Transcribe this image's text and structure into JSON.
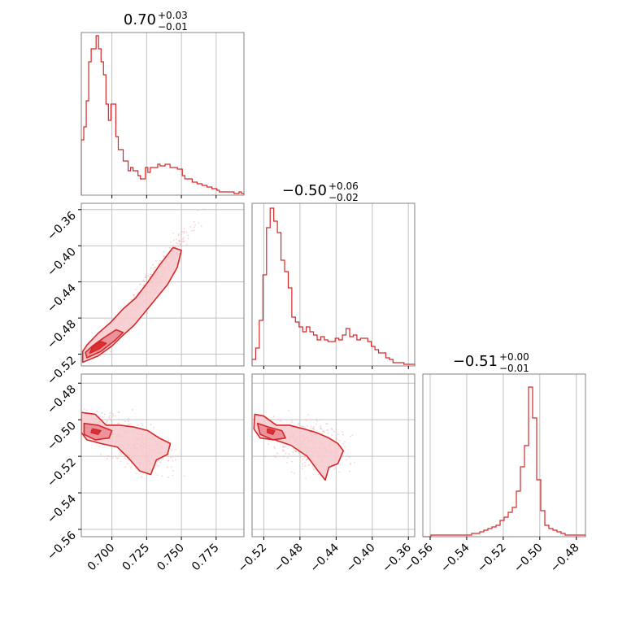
{
  "chart_data": {
    "type": "corner",
    "color": "#d62728",
    "fill_light": "#f6c9cc",
    "fill_dark": "#e9888f",
    "scatter_color": "#f0b0b5",
    "grid": true,
    "params": [
      {
        "title_value": "0.70",
        "title_sup": "+0.03",
        "title_sub": "−0.01",
        "range": [
          0.678,
          0.795
        ],
        "ticks": [
          0.7,
          0.725,
          0.75,
          0.775
        ],
        "tick_labels": [
          "0.700",
          "0.725",
          "0.750",
          "0.775"
        ],
        "hist_range": [
          0,
          1.0
        ],
        "hist": [
          0.34,
          0.42,
          0.58,
          0.82,
          0.9,
          0.9,
          0.98,
          0.9,
          0.82,
          0.74,
          0.56,
          0.46,
          0.56,
          0.56,
          0.36,
          0.28,
          0.28,
          0.21,
          0.21,
          0.15,
          0.17,
          0.15,
          0.15,
          0.12,
          0.1,
          0.1,
          0.17,
          0.14,
          0.17,
          0.17,
          0.17,
          0.19,
          0.18,
          0.18,
          0.19,
          0.19,
          0.17,
          0.17,
          0.17,
          0.16,
          0.16,
          0.12,
          0.1,
          0.1,
          0.1,
          0.08,
          0.08,
          0.07,
          0.07,
          0.06,
          0.06,
          0.05,
          0.05,
          0.04,
          0.04,
          0.03,
          0.02,
          0.02,
          0.02,
          0.02,
          0.02,
          0.02,
          0.01,
          0.01,
          0.02,
          0.01
        ]
      },
      {
        "title_value": "−0.50",
        "title_sup": "+0.06",
        "title_sub": "−0.02",
        "range": [
          -0.533,
          -0.353
        ],
        "ticks": [
          -0.52,
          -0.48,
          -0.44,
          -0.4,
          -0.36
        ],
        "tick_labels": [
          "−0.52",
          "−0.48",
          "−0.44",
          "−0.40",
          "−0.36"
        ],
        "hist_range": [
          0,
          1.0
        ],
        "hist": [
          0.04,
          0.11,
          0.28,
          0.56,
          0.85,
          0.97,
          0.89,
          0.82,
          0.65,
          0.58,
          0.48,
          0.3,
          0.27,
          0.24,
          0.21,
          0.24,
          0.21,
          0.19,
          0.16,
          0.18,
          0.16,
          0.15,
          0.15,
          0.17,
          0.16,
          0.19,
          0.23,
          0.18,
          0.19,
          0.16,
          0.17,
          0.17,
          0.15,
          0.12,
          0.1,
          0.08,
          0.08,
          0.05,
          0.04,
          0.02,
          0.02,
          0.02,
          0.01,
          0.01,
          0.01
        ]
      },
      {
        "title_value": "−0.51",
        "title_sup": "+0.00",
        "title_sub": "−0.01",
        "range": [
          -0.564,
          -0.475
        ],
        "ticks": [
          -0.56,
          -0.54,
          -0.52,
          -0.5,
          -0.48
        ],
        "tick_labels": [
          "−0.56",
          "−0.54",
          "−0.52",
          "−0.50",
          "−0.48"
        ],
        "hist_range": [
          0,
          1.0
        ],
        "hist": [
          0.0,
          0.0,
          0.01,
          0.01,
          0.01,
          0.01,
          0.01,
          0.01,
          0.01,
          0.01,
          0.01,
          0.01,
          0.02,
          0.02,
          0.03,
          0.04,
          0.05,
          0.06,
          0.07,
          0.1,
          0.12,
          0.15,
          0.18,
          0.28,
          0.43,
          0.56,
          0.92,
          0.73,
          0.35,
          0.16,
          0.07,
          0.05,
          0.04,
          0.03,
          0.02,
          0.01,
          0.01,
          0.01,
          0.01,
          0.01
        ]
      }
    ],
    "pairs": [
      {
        "row": 1,
        "col": 0,
        "levels": [
          {
            "sigma": 2,
            "fill": "light",
            "points": [
              [
                0.679,
                -0.529
              ],
              [
                0.69,
                -0.522
              ],
              [
                0.7,
                -0.511
              ],
              [
                0.708,
                -0.499
              ],
              [
                0.716,
                -0.488
              ],
              [
                0.724,
                -0.473
              ],
              [
                0.732,
                -0.458
              ],
              [
                0.74,
                -0.443
              ],
              [
                0.747,
                -0.424
              ],
              [
                0.75,
                -0.405
              ],
              [
                0.744,
                -0.402
              ],
              [
                0.734,
                -0.422
              ],
              [
                0.726,
                -0.44
              ],
              [
                0.717,
                -0.458
              ],
              [
                0.708,
                -0.47
              ],
              [
                0.699,
                -0.485
              ],
              [
                0.69,
                -0.497
              ],
              [
                0.682,
                -0.51
              ],
              [
                0.679,
                -0.517
              ]
            ]
          },
          {
            "sigma": 1,
            "fill": "dark",
            "points": [
              [
                0.682,
                -0.524
              ],
              [
                0.692,
                -0.517
              ],
              [
                0.702,
                -0.505
              ],
              [
                0.708,
                -0.496
              ],
              [
                0.703,
                -0.493
              ],
              [
                0.694,
                -0.502
              ],
              [
                0.686,
                -0.511
              ],
              [
                0.681,
                -0.518
              ]
            ]
          },
          {
            "sigma": 0.5,
            "fill": "darker",
            "points": [
              [
                0.684,
                -0.519
              ],
              [
                0.691,
                -0.514
              ],
              [
                0.696,
                -0.508
              ],
              [
                0.692,
                -0.506
              ],
              [
                0.686,
                -0.512
              ]
            ]
          }
        ],
        "scatter": {
          "center": [
            0.73,
            -0.44
          ],
          "slope": 2.1,
          "spread": [
            0.018,
            0.012
          ],
          "n": 380
        }
      },
      {
        "row": 2,
        "col": 0,
        "levels": [
          {
            "sigma": 2,
            "fill": "light",
            "points": [
              [
                0.678,
                -0.496
              ],
              [
                0.688,
                -0.497
              ],
              [
                0.696,
                -0.503
              ],
              [
                0.706,
                -0.503
              ],
              [
                0.716,
                -0.504
              ],
              [
                0.726,
                -0.506
              ],
              [
                0.734,
                -0.51
              ],
              [
                0.742,
                -0.513
              ],
              [
                0.74,
                -0.519
              ],
              [
                0.732,
                -0.522
              ],
              [
                0.728,
                -0.53
              ],
              [
                0.72,
                -0.528
              ],
              [
                0.712,
                -0.521
              ],
              [
                0.704,
                -0.515
              ],
              [
                0.692,
                -0.513
              ],
              [
                0.682,
                -0.511
              ],
              [
                0.678,
                -0.507
              ]
            ]
          },
          {
            "sigma": 1,
            "fill": "dark",
            "points": [
              [
                0.68,
                -0.502
              ],
              [
                0.69,
                -0.503
              ],
              [
                0.7,
                -0.506
              ],
              [
                0.698,
                -0.51
              ],
              [
                0.688,
                -0.511
              ],
              [
                0.68,
                -0.508
              ]
            ]
          },
          {
            "sigma": 0.5,
            "fill": "darker",
            "points": [
              [
                0.686,
                -0.505
              ],
              [
                0.692,
                -0.506
              ],
              [
                0.69,
                -0.508
              ],
              [
                0.685,
                -0.507
              ]
            ]
          }
        ],
        "scatter": {
          "center": [
            0.715,
            -0.513
          ],
          "slope": -0.3,
          "spread": [
            0.02,
            0.01
          ],
          "n": 330
        }
      },
      {
        "row": 2,
        "col": 1,
        "levels": [
          {
            "sigma": 2,
            "fill": "light",
            "points": [
              [
                -0.53,
                -0.497
              ],
              [
                -0.52,
                -0.498
              ],
              [
                -0.506,
                -0.503
              ],
              [
                -0.492,
                -0.503
              ],
              [
                -0.476,
                -0.505
              ],
              [
                -0.462,
                -0.507
              ],
              [
                -0.448,
                -0.51
              ],
              [
                -0.438,
                -0.513
              ],
              [
                -0.432,
                -0.517
              ],
              [
                -0.438,
                -0.524
              ],
              [
                -0.448,
                -0.526
              ],
              [
                -0.452,
                -0.533
              ],
              [
                -0.46,
                -0.528
              ],
              [
                -0.472,
                -0.52
              ],
              [
                -0.49,
                -0.514
              ],
              [
                -0.508,
                -0.511
              ],
              [
                -0.524,
                -0.51
              ],
              [
                -0.531,
                -0.505
              ]
            ]
          },
          {
            "sigma": 1,
            "fill": "dark",
            "points": [
              [
                -0.527,
                -0.502
              ],
              [
                -0.515,
                -0.504
              ],
              [
                -0.5,
                -0.506
              ],
              [
                -0.496,
                -0.51
              ],
              [
                -0.51,
                -0.511
              ],
              [
                -0.524,
                -0.508
              ]
            ]
          },
          {
            "sigma": 0.5,
            "fill": "darker",
            "points": [
              [
                -0.516,
                -0.505
              ],
              [
                -0.508,
                -0.506
              ],
              [
                -0.51,
                -0.508
              ],
              [
                -0.516,
                -0.507
              ]
            ]
          }
        ],
        "scatter": {
          "center": [
            -0.47,
            -0.513
          ],
          "slope": -0.08,
          "spread": [
            0.03,
            0.01
          ],
          "n": 330
        }
      }
    ]
  }
}
